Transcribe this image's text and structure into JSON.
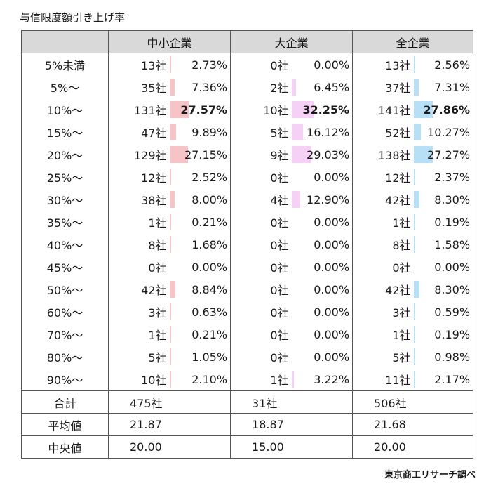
{
  "title": "与信限度額引き上げ率",
  "source": "東京商工リサーチ調べ",
  "colors": {
    "sme": "#f6c3c6",
    "large": "#f5d2f5",
    "all": "#b7e0f6",
    "header_bg": "#d9d9d9"
  },
  "columns": [
    {
      "key": "sme",
      "label": "中小企業"
    },
    {
      "key": "large",
      "label": "大企業"
    },
    {
      "key": "all",
      "label": "全企業"
    }
  ],
  "rows": [
    {
      "label": "5%未満",
      "sme": {
        "count": "13社",
        "pct": "2.73%"
      },
      "large": {
        "count": "0社",
        "pct": "0.00%"
      },
      "all": {
        "count": "13社",
        "pct": "2.56%"
      }
    },
    {
      "label": "5%～",
      "sme": {
        "count": "35社",
        "pct": "7.36%"
      },
      "large": {
        "count": "2社",
        "pct": "6.45%"
      },
      "all": {
        "count": "37社",
        "pct": "7.31%"
      }
    },
    {
      "label": "10%～",
      "bold": true,
      "sme": {
        "count": "131社",
        "pct": "27.57%"
      },
      "large": {
        "count": "10社",
        "pct": "32.25%"
      },
      "all": {
        "count": "141社",
        "pct": "27.86%"
      }
    },
    {
      "label": "15%～",
      "sme": {
        "count": "47社",
        "pct": "9.89%"
      },
      "large": {
        "count": "5社",
        "pct": "16.12%"
      },
      "all": {
        "count": "52社",
        "pct": "10.27%"
      }
    },
    {
      "label": "20%～",
      "sme": {
        "count": "129社",
        "pct": "27.15%"
      },
      "large": {
        "count": "9社",
        "pct": "29.03%"
      },
      "all": {
        "count": "138社",
        "pct": "27.27%"
      }
    },
    {
      "label": "25%～",
      "sme": {
        "count": "12社",
        "pct": "2.52%"
      },
      "large": {
        "count": "0社",
        "pct": "0.00%"
      },
      "all": {
        "count": "12社",
        "pct": "2.37%"
      }
    },
    {
      "label": "30%～",
      "sme": {
        "count": "38社",
        "pct": "8.00%"
      },
      "large": {
        "count": "4社",
        "pct": "12.90%"
      },
      "all": {
        "count": "42社",
        "pct": "8.30%"
      }
    },
    {
      "label": "35%～",
      "sme": {
        "count": "1社",
        "pct": "0.21%"
      },
      "large": {
        "count": "0社",
        "pct": "0.00%"
      },
      "all": {
        "count": "1社",
        "pct": "0.19%"
      }
    },
    {
      "label": "40%～",
      "sme": {
        "count": "8社",
        "pct": "1.68%"
      },
      "large": {
        "count": "0社",
        "pct": "0.00%"
      },
      "all": {
        "count": "8社",
        "pct": "1.58%"
      }
    },
    {
      "label": "45%～",
      "sme": {
        "count": "0社",
        "pct": "0.00%"
      },
      "large": {
        "count": "0社",
        "pct": "0.00%"
      },
      "all": {
        "count": "0社",
        "pct": "0.00%"
      }
    },
    {
      "label": "50%～",
      "sme": {
        "count": "42社",
        "pct": "8.84%"
      },
      "large": {
        "count": "0社",
        "pct": "0.00%"
      },
      "all": {
        "count": "42社",
        "pct": "8.30%"
      }
    },
    {
      "label": "60%～",
      "sme": {
        "count": "3社",
        "pct": "0.63%"
      },
      "large": {
        "count": "0社",
        "pct": "0.00%"
      },
      "all": {
        "count": "3社",
        "pct": "0.59%"
      }
    },
    {
      "label": "70%～",
      "sme": {
        "count": "1社",
        "pct": "0.21%"
      },
      "large": {
        "count": "0社",
        "pct": "0.00%"
      },
      "all": {
        "count": "1社",
        "pct": "0.19%"
      }
    },
    {
      "label": "80%～",
      "sme": {
        "count": "5社",
        "pct": "1.05%"
      },
      "large": {
        "count": "0社",
        "pct": "0.00%"
      },
      "all": {
        "count": "5社",
        "pct": "0.98%"
      }
    },
    {
      "label": "90%～",
      "sme": {
        "count": "10社",
        "pct": "2.10%"
      },
      "large": {
        "count": "1社",
        "pct": "3.22%"
      },
      "all": {
        "count": "11社",
        "pct": "2.17%"
      }
    }
  ],
  "footer": [
    {
      "label": "合計",
      "sme": "475社",
      "large": "31社",
      "all": "506社"
    },
    {
      "label": "平均値",
      "sme": "21.87",
      "large": "18.87",
      "all": "21.68"
    },
    {
      "label": "中央値",
      "sme": "20.00",
      "large": "15.00",
      "all": "20.00"
    }
  ]
}
